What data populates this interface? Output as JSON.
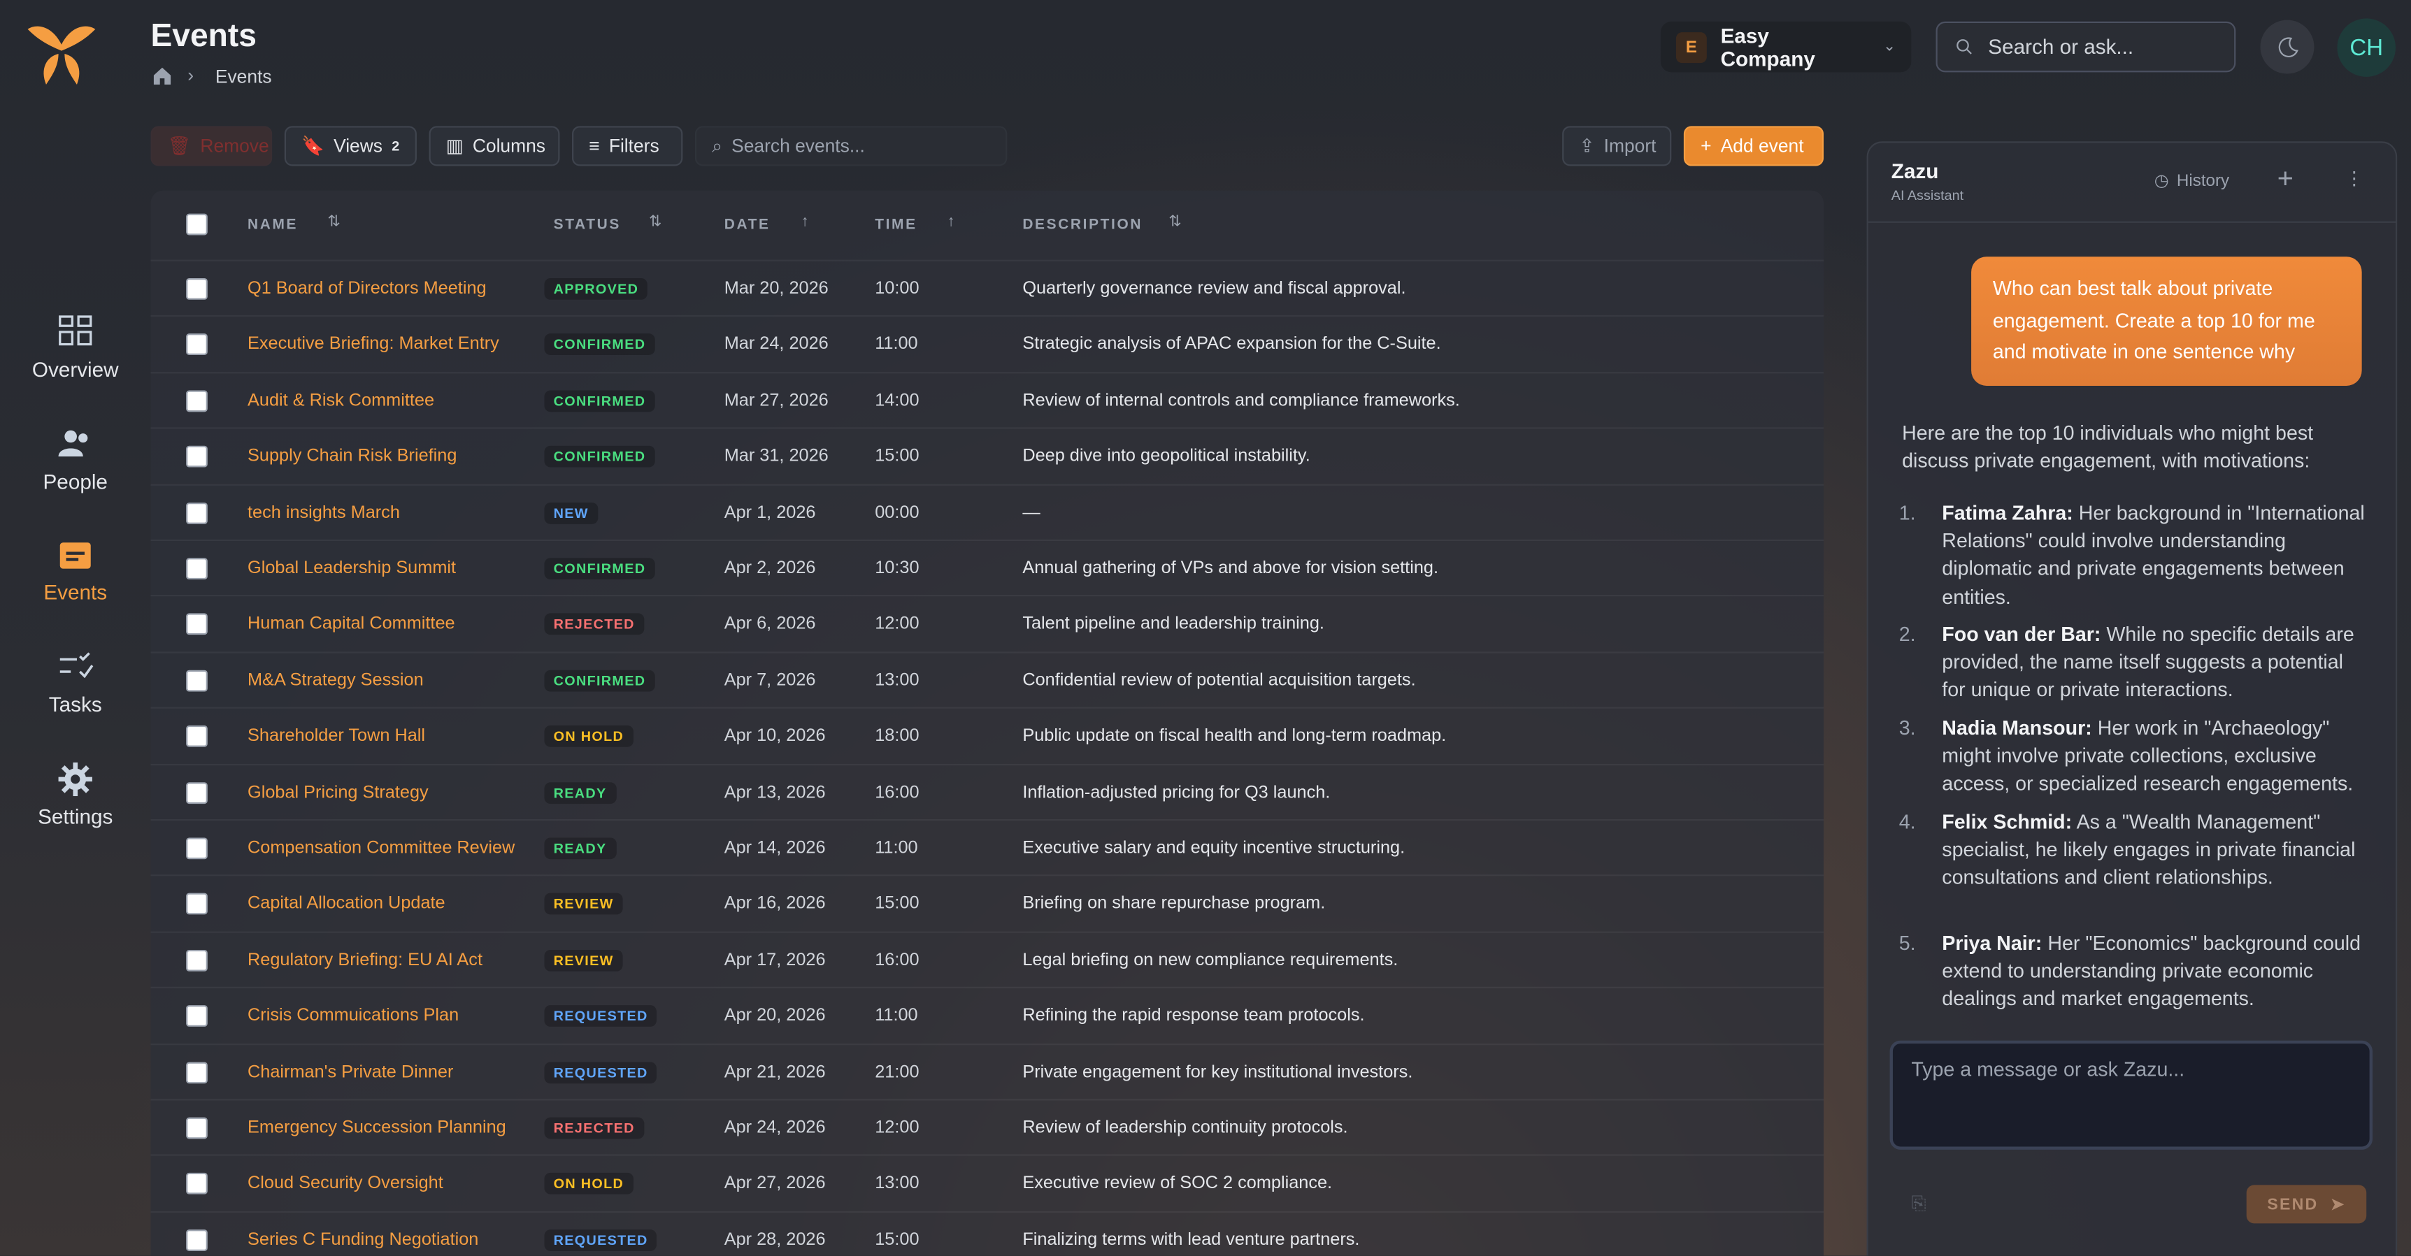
{
  "header": {
    "title": "Events",
    "breadcrumb": "Events",
    "company_initial": "E",
    "company": "Easy Company",
    "search_placeholder": "Search or ask...",
    "avatar": "CH"
  },
  "nav": [
    {
      "label": "Overview"
    },
    {
      "label": "People"
    },
    {
      "label": "Events"
    },
    {
      "label": "Tasks"
    },
    {
      "label": "Settings"
    }
  ],
  "toolbar": {
    "remove": "Remove",
    "views": "Views",
    "views_count": "2",
    "columns": "Columns",
    "filters": "Filters",
    "search_placeholder": "Search events...",
    "import": "Import",
    "add": "Add event"
  },
  "table": {
    "columns": [
      "NAME",
      "STATUS",
      "DATE",
      "TIME",
      "DESCRIPTION"
    ],
    "rows": [
      {
        "name": "Q1 Board of Directors Meeting",
        "status": "APPROVED",
        "status_color": "#4ade80",
        "date": "Mar 20, 2026",
        "time": "10:00",
        "description": "Quarterly governance review and fiscal approval."
      },
      {
        "name": "Executive Briefing: Market Entry",
        "status": "CONFIRMED",
        "status_color": "#4ade80",
        "date": "Mar 24, 2026",
        "time": "11:00",
        "description": "Strategic analysis of APAC expansion for the C-Suite."
      },
      {
        "name": "Audit & Risk Committee",
        "status": "CONFIRMED",
        "status_color": "#4ade80",
        "date": "Mar 27, 2026",
        "time": "14:00",
        "description": "Review of internal controls and compliance frameworks."
      },
      {
        "name": "Supply Chain Risk Briefing",
        "status": "CONFIRMED",
        "status_color": "#4ade80",
        "date": "Mar 31, 2026",
        "time": "15:00",
        "description": "Deep dive into geopolitical instability."
      },
      {
        "name": "tech insights March",
        "status": "NEW",
        "status_color": "#60a5fa",
        "date": "Apr 1, 2026",
        "time": "00:00",
        "description": "—"
      },
      {
        "name": "Global Leadership Summit",
        "status": "CONFIRMED",
        "status_color": "#4ade80",
        "date": "Apr 2, 2026",
        "time": "10:30",
        "description": "Annual gathering of VPs and above for vision setting."
      },
      {
        "name": "Human Capital Committee",
        "status": "REJECTED",
        "status_color": "#f87171",
        "date": "Apr 6, 2026",
        "time": "12:00",
        "description": "Talent pipeline and leadership training."
      },
      {
        "name": "M&A Strategy Session",
        "status": "CONFIRMED",
        "status_color": "#4ade80",
        "date": "Apr 7, 2026",
        "time": "13:00",
        "description": "Confidential review of potential acquisition targets."
      },
      {
        "name": "Shareholder Town Hall",
        "status": "ON HOLD",
        "status_color": "#fbbf24",
        "date": "Apr 10, 2026",
        "time": "18:00",
        "description": "Public update on fiscal health and long-term roadmap."
      },
      {
        "name": "Global Pricing Strategy",
        "status": "READY",
        "status_color": "#4ade80",
        "date": "Apr 13, 2026",
        "time": "16:00",
        "description": "Inflation-adjusted pricing for Q3 launch."
      },
      {
        "name": "Compensation Committee Review",
        "status": "READY",
        "status_color": "#4ade80",
        "date": "Apr 14, 2026",
        "time": "11:00",
        "description": "Executive salary and equity incentive structuring."
      },
      {
        "name": "Capital Allocation Update",
        "status": "REVIEW",
        "status_color": "#fbbf24",
        "date": "Apr 16, 2026",
        "time": "15:00",
        "description": "Briefing on share repurchase program."
      },
      {
        "name": "Regulatory Briefing: EU AI Act",
        "status": "REVIEW",
        "status_color": "#fbbf24",
        "date": "Apr 17, 2026",
        "time": "16:00",
        "description": "Legal briefing on new compliance requirements."
      },
      {
        "name": "Crisis Commuications Plan",
        "status": "REQUESTED",
        "status_color": "#60a5fa",
        "date": "Apr 20, 2026",
        "time": "11:00",
        "description": "Refining the rapid response team protocols."
      },
      {
        "name": "Chairman's Private Dinner",
        "status": "REQUESTED",
        "status_color": "#60a5fa",
        "date": "Apr 21, 2026",
        "time": "21:00",
        "description": "Private engagement for key institutional investors."
      },
      {
        "name": "Emergency Succession Planning",
        "status": "REJECTED",
        "status_color": "#f87171",
        "date": "Apr 24, 2026",
        "time": "12:00",
        "description": "Review of leadership continuity protocols."
      },
      {
        "name": "Cloud Security Oversight",
        "status": "ON HOLD",
        "status_color": "#fbbf24",
        "date": "Apr 27, 2026",
        "time": "13:00",
        "description": "Executive review of SOC 2 compliance."
      },
      {
        "name": "Series C Funding Negotiation",
        "status": "REQUESTED",
        "status_color": "#60a5fa",
        "date": "Apr 28, 2026",
        "time": "15:00",
        "description": "Finalizing terms with lead venture partners."
      }
    ]
  },
  "chat": {
    "title": "Zazu",
    "subtitle": "AI Assistant",
    "history": "History",
    "user_message": "Who can best talk about private engagement. Create a top 10 for me and motivate in one sentence why",
    "intro": "Here are the top 10 individuals who might best discuss private engagement, with motivations:",
    "items": [
      {
        "number": "1.",
        "name": "Fatima Zahra:",
        "text": "Her background in \"International Relations\" could involve understanding diplomatic and private engagements between entities."
      },
      {
        "number": "2.",
        "name": "Foo van der Bar:",
        "text": "While no specific details are provided, the name itself suggests a potential for unique or private interactions."
      },
      {
        "number": "3.",
        "name": "Nadia Mansour:",
        "text": "Her work in \"Archaeology\" might involve private collections, exclusive access, or specialized research engagements."
      },
      {
        "number": "4.",
        "name": "Felix Schmid:",
        "text": "As a \"Wealth Management\" specialist, he likely engages in private financial consultations and client relationships."
      },
      {
        "number": "5.",
        "name": "Priya Nair:",
        "text": "Her \"Economics\" background could extend to understanding private economic dealings and market engagements."
      }
    ],
    "input_placeholder": "Type a message or ask Zazu...",
    "send": "SEND"
  }
}
